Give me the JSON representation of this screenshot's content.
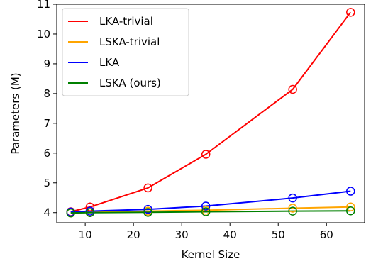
{
  "chart_data": {
    "type": "line",
    "title": "",
    "xlabel": "Kernel Size",
    "ylabel": "Parameters (M)",
    "xlim": [
      4.1,
      67.9
    ],
    "ylim": [
      3.66,
      11.0
    ],
    "xticks": [
      10,
      20,
      30,
      40,
      50,
      60
    ],
    "yticks": [
      4,
      5,
      6,
      7,
      8,
      9,
      10,
      11
    ],
    "grid": false,
    "legend_position": "upper-left",
    "marker": "open-circle",
    "series": [
      {
        "name": "LKA-trivial",
        "color": "#ff0000",
        "x": [
          7,
          11,
          23,
          35,
          53,
          65
        ],
        "y": [
          4.03,
          4.19,
          4.83,
          5.96,
          8.14,
          10.73
        ]
      },
      {
        "name": "LSKA-trivial",
        "color": "#ffa500",
        "x": [
          7,
          11,
          23,
          35,
          53,
          65
        ],
        "y": [
          3.99,
          4.01,
          4.05,
          4.08,
          4.15,
          4.19
        ]
      },
      {
        "name": "LKA",
        "color": "#0000ff",
        "x": [
          7,
          11,
          23,
          35,
          53,
          65
        ],
        "y": [
          4.02,
          4.05,
          4.11,
          4.22,
          4.49,
          4.72
        ]
      },
      {
        "name": "LSKA (ours)",
        "color": "#008000",
        "x": [
          7,
          11,
          23,
          35,
          53,
          65
        ],
        "y": [
          3.99,
          4.0,
          4.01,
          4.03,
          4.05,
          4.06
        ]
      }
    ]
  }
}
